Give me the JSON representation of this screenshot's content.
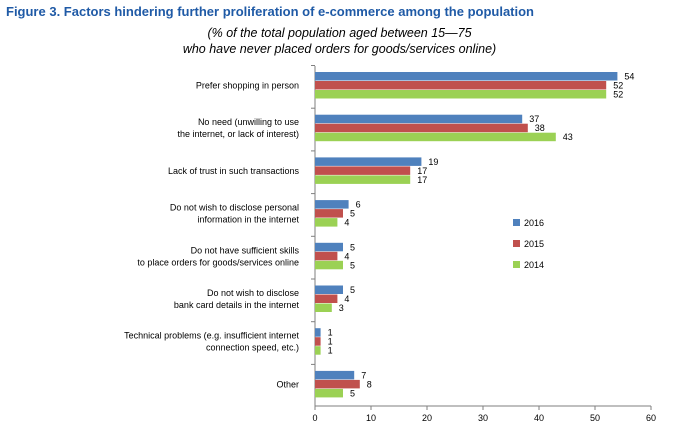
{
  "figure": {
    "title": "Figure 3. Factors hindering further proliferation of e-commerce among the population",
    "subtitle_line1": "(% of the total population aged between 15—75",
    "subtitle_line2": "who have never placed orders for goods/services online)"
  },
  "chart_data": {
    "type": "bar",
    "orientation": "horizontal",
    "categories": [
      [
        "Prefer shopping in person"
      ],
      [
        "No need (unwilling to use",
        "the internet, or lack of interest)"
      ],
      [
        "Lack of trust in such transactions"
      ],
      [
        "Do not wish to disclose personal",
        "information in the internet"
      ],
      [
        "Do not have sufficient skills",
        "to place orders for goods/services online"
      ],
      [
        "Do not wish to disclose",
        "bank card details in the internet"
      ],
      [
        "Technical problems (e.g. insufficient internet",
        "connection speed, etc.)"
      ],
      [
        "Other"
      ]
    ],
    "series": [
      {
        "name": "2016",
        "color": "#4f81bd",
        "values": [
          54,
          37,
          19,
          6,
          5,
          5,
          1,
          7
        ]
      },
      {
        "name": "2015",
        "color": "#c0504d",
        "values": [
          52,
          38,
          17,
          5,
          4,
          4,
          1,
          8
        ]
      },
      {
        "name": "2014",
        "color": "#9bd154",
        "values": [
          52,
          43,
          17,
          4,
          5,
          3,
          1,
          5
        ]
      }
    ],
    "xlim": [
      0,
      60
    ],
    "xticks": [
      0,
      10,
      20,
      30,
      40,
      50,
      60
    ],
    "legend_position": "right-middle",
    "grid": false
  }
}
